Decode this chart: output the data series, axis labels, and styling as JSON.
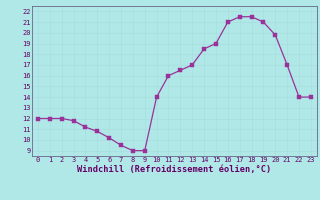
{
  "x": [
    0,
    1,
    2,
    3,
    4,
    5,
    6,
    7,
    8,
    9,
    10,
    11,
    12,
    13,
    14,
    15,
    16,
    17,
    18,
    19,
    20,
    21,
    22,
    23
  ],
  "y": [
    12,
    12,
    12,
    11.8,
    11.2,
    10.8,
    10.2,
    9.5,
    9.0,
    9.0,
    14.0,
    16.0,
    16.5,
    17.0,
    18.5,
    19.0,
    21.0,
    21.5,
    21.5,
    21.0,
    19.8,
    17.0,
    14.0,
    14.0
  ],
  "line_color": "#993399",
  "marker_color": "#993399",
  "bg_color": "#b0e8e8",
  "grid_color": "#aadddd",
  "xlabel": "Windchill (Refroidissement éolien,°C)",
  "xlim": [
    -0.5,
    23.5
  ],
  "ylim": [
    8.5,
    22.5
  ],
  "yticks": [
    9,
    10,
    11,
    12,
    13,
    14,
    15,
    16,
    17,
    18,
    19,
    20,
    21,
    22
  ],
  "xticks": [
    0,
    1,
    2,
    3,
    4,
    5,
    6,
    7,
    8,
    9,
    10,
    11,
    12,
    13,
    14,
    15,
    16,
    17,
    18,
    19,
    20,
    21,
    22,
    23
  ],
  "tick_fontsize": 5.0,
  "xlabel_fontsize": 6.2,
  "line_width": 0.9,
  "marker_size": 2.2
}
